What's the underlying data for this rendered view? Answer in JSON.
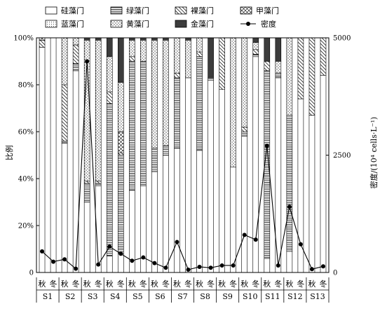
{
  "chart_data": {
    "type": "bar",
    "stacked": true,
    "xlabel": "",
    "ylabel": "比例",
    "y2label": "密度/(10⁴ cells·L⁻¹)",
    "ylim": [
      0,
      100
    ],
    "y2lim": [
      0,
      5000
    ],
    "yticks": [
      "0",
      "20%",
      "40%",
      "60%",
      "80%",
      "100%"
    ],
    "y2ticks": [
      "0",
      "2500",
      "5000"
    ],
    "sites": [
      "S1",
      "S2",
      "S3",
      "S4",
      "S5",
      "S6",
      "S7",
      "S8",
      "S9",
      "S10",
      "S11",
      "S12",
      "S13"
    ],
    "seasons": [
      "秋",
      "冬"
    ],
    "categories": [
      "S1-秋",
      "S1-冬",
      "S2-秋",
      "S2-冬",
      "S3-秋",
      "S3-冬",
      "S4-秋",
      "S4-冬",
      "S5-秋",
      "S5-冬",
      "S6-秋",
      "S6-冬",
      "S7-秋",
      "S7-冬",
      "S8-秋",
      "S8-冬",
      "S9-秋",
      "S9-冬",
      "S10-秋",
      "S10-冬",
      "S11-秋",
      "S11-冬",
      "S12-秋",
      "S12-冬",
      "S13-秋",
      "S13-冬"
    ],
    "series": [
      {
        "name": "硅藻门",
        "pattern": "white",
        "values": [
          96,
          100,
          55,
          86,
          30,
          37,
          7,
          8,
          35,
          37,
          43,
          50,
          53,
          83,
          52,
          82,
          78,
          45,
          58,
          92,
          6,
          83,
          9,
          74,
          67,
          84
        ]
      },
      {
        "name": "绿藻门",
        "pattern": "hlines",
        "values": [
          0,
          0,
          1,
          3,
          8,
          1,
          65,
          42,
          55,
          53,
          10,
          4,
          30,
          0,
          40,
          1,
          0,
          0,
          2,
          1,
          80,
          2,
          58,
          0,
          0,
          0
        ]
      },
      {
        "name": "裸藻门",
        "pattern": "diag",
        "values": [
          3,
          0,
          24,
          8,
          1,
          1,
          5,
          1,
          2,
          0,
          0,
          0,
          2,
          0,
          2,
          0,
          22,
          0,
          2,
          2,
          4,
          0,
          0,
          26,
          33,
          16
        ]
      },
      {
        "name": "甲藻门",
        "pattern": "cross",
        "values": [
          1,
          0,
          0,
          0,
          0,
          0,
          0,
          9,
          0,
          0,
          0,
          0,
          0,
          0,
          0,
          0,
          0,
          0,
          0,
          0,
          0,
          0,
          0,
          0,
          0,
          0
        ]
      },
      {
        "name": "蓝藻门",
        "pattern": "dots",
        "values": [
          0,
          0,
          0,
          0,
          0,
          0,
          0,
          0,
          0,
          0,
          0,
          0,
          0,
          0,
          0,
          0,
          0,
          0,
          0,
          0,
          0,
          0,
          0,
          0,
          0,
          0
        ]
      },
      {
        "name": "黄藻门",
        "pattern": "bigdots",
        "values": [
          0,
          0,
          20,
          3,
          60,
          60,
          15,
          21,
          7,
          9,
          46,
          45,
          15,
          16,
          6,
          0,
          0,
          55,
          38,
          3,
          0,
          5,
          33,
          0,
          0,
          0
        ]
      },
      {
        "name": "金藻门",
        "pattern": "dark",
        "values": [
          0,
          0,
          0,
          0,
          1,
          1,
          8,
          19,
          1,
          1,
          1,
          1,
          0,
          1,
          0,
          17,
          0,
          0,
          0,
          2,
          10,
          10,
          0,
          0,
          0,
          0
        ]
      }
    ],
    "line": {
      "name": "密度",
      "values": [
        450,
        230,
        280,
        80,
        4500,
        170,
        550,
        400,
        250,
        320,
        200,
        100,
        650,
        60,
        120,
        100,
        150,
        150,
        800,
        700,
        2700,
        150,
        1400,
        600,
        70,
        130
      ]
    }
  },
  "colors": {
    "ink": "#000000",
    "fill": "#ffffff",
    "dark": "#3c3c3c"
  }
}
